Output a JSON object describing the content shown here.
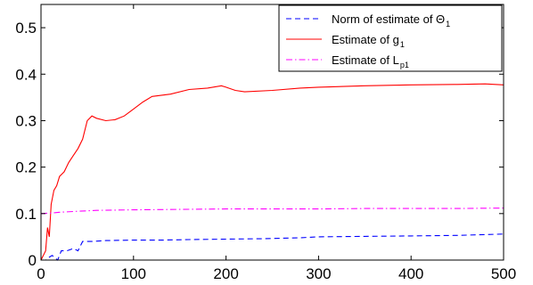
{
  "chart_data": {
    "type": "line",
    "title": "",
    "xlabel": "",
    "ylabel": "",
    "xlim": [
      0,
      500
    ],
    "ylim": [
      0,
      0.55
    ],
    "x_ticks": [
      0,
      100,
      200,
      300,
      400,
      500
    ],
    "x_tick_labels": [
      "0",
      "100",
      "200",
      "300",
      "400",
      "500"
    ],
    "y_ticks": [
      0,
      0.1,
      0.2,
      0.3,
      0.4,
      0.5
    ],
    "y_tick_labels": [
      "0",
      "0.1",
      "0.2",
      "0.3",
      "0.4",
      "0.5"
    ],
    "grid": false,
    "legend_position": "top-right",
    "series": [
      {
        "name": "Norm of estimate of Θ",
        "name_subscript": "1",
        "color": "#0000ff",
        "style": "dashed",
        "x": [
          0,
          5,
          8,
          12,
          18,
          22,
          28,
          35,
          40,
          45,
          55,
          70,
          100,
          130,
          160,
          200,
          240,
          280,
          300,
          350,
          400,
          450,
          500
        ],
        "y": [
          0.0,
          0.0,
          0.005,
          0.01,
          0.0,
          0.02,
          0.02,
          0.025,
          0.02,
          0.04,
          0.04,
          0.042,
          0.043,
          0.043,
          0.044,
          0.045,
          0.046,
          0.048,
          0.05,
          0.051,
          0.052,
          0.053,
          0.056
        ]
      },
      {
        "name": "Estimate of g",
        "name_subscript": "1",
        "color": "#ff0000",
        "style": "solid",
        "x": [
          0,
          5,
          7,
          9,
          11,
          14,
          17,
          20,
          25,
          30,
          35,
          40,
          45,
          50,
          55,
          60,
          70,
          80,
          90,
          100,
          110,
          120,
          140,
          160,
          180,
          195,
          200,
          210,
          220,
          250,
          280,
          300,
          350,
          400,
          450,
          480,
          500
        ],
        "y": [
          0.0,
          0.02,
          0.07,
          0.05,
          0.12,
          0.15,
          0.16,
          0.18,
          0.19,
          0.21,
          0.225,
          0.24,
          0.26,
          0.3,
          0.31,
          0.305,
          0.3,
          0.302,
          0.31,
          0.325,
          0.34,
          0.352,
          0.357,
          0.367,
          0.37,
          0.375,
          0.372,
          0.365,
          0.362,
          0.365,
          0.37,
          0.372,
          0.375,
          0.377,
          0.378,
          0.379,
          0.377
        ]
      },
      {
        "name": "Estimate of L",
        "name_subscript": "p1",
        "color": "#ff00ff",
        "style": "dashdot",
        "x": [
          0,
          10,
          20,
          40,
          60,
          100,
          150,
          200,
          250,
          300,
          350,
          400,
          450,
          500
        ],
        "y": [
          0.1,
          0.101,
          0.103,
          0.105,
          0.107,
          0.108,
          0.109,
          0.11,
          0.11,
          0.11,
          0.111,
          0.111,
          0.111,
          0.112
        ]
      }
    ]
  }
}
